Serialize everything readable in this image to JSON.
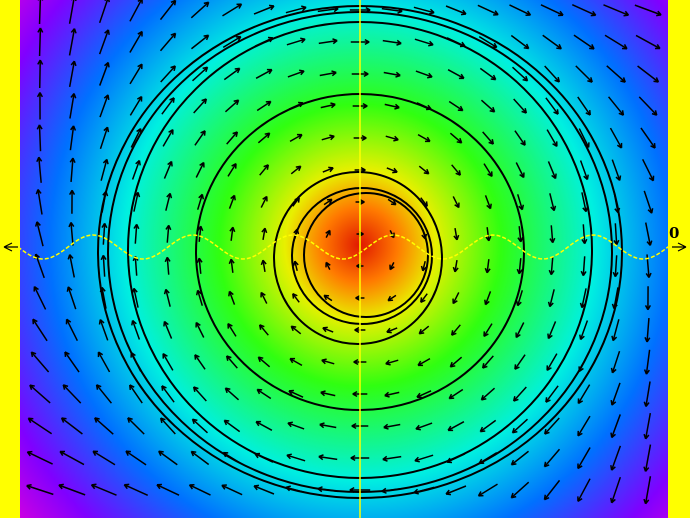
{
  "label": "0"
}
